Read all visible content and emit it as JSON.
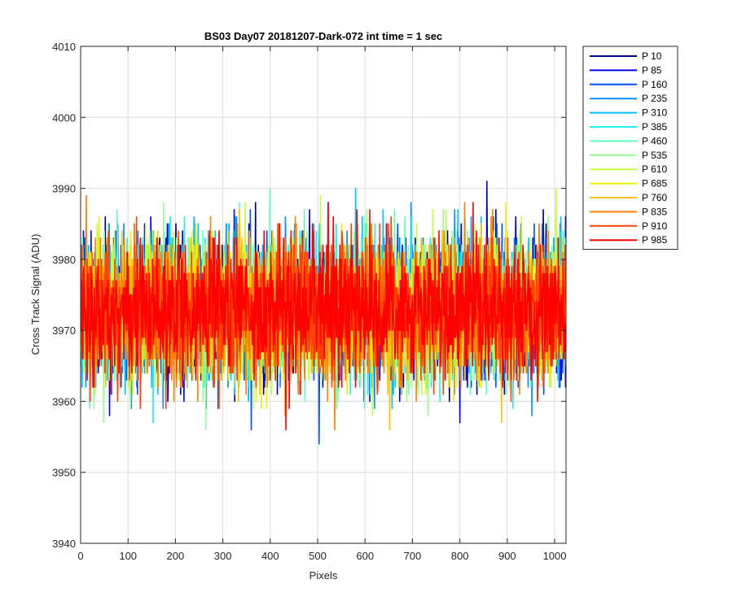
{
  "chart_data": {
    "type": "line",
    "title": "BS03 Day07 20181207-Dark-072 int time = 1 sec",
    "xlabel": "Pixels",
    "ylabel": "Cross Track Signal (ADU)",
    "xlim": [
      0,
      1024
    ],
    "ylim": [
      3940,
      4010
    ],
    "xticks": [
      "0",
      "100",
      "200",
      "300",
      "400",
      "500",
      "600",
      "700",
      "800",
      "900",
      "1000"
    ],
    "yticks": [
      "3940",
      "3950",
      "3960",
      "3970",
      "3980",
      "3990",
      "4000",
      "4010"
    ],
    "grid": true,
    "legend_placement": "outside-top-right",
    "series": [
      {
        "name": "P 10",
        "color": "#00008F",
        "mean": 3973,
        "spread": 6.5
      },
      {
        "name": "P 85",
        "color": "#0000EF",
        "mean": 3973,
        "spread": 6.5
      },
      {
        "name": "P 160",
        "color": "#0050FF",
        "mean": 3973,
        "spread": 6.5
      },
      {
        "name": "P 235",
        "color": "#0090FF",
        "mean": 3973,
        "spread": 6.5
      },
      {
        "name": "P 310",
        "color": "#00C0FF",
        "mean": 3973,
        "spread": 6.5
      },
      {
        "name": "P 385",
        "color": "#20EFEF",
        "mean": 3973,
        "spread": 6.5
      },
      {
        "name": "P 460",
        "color": "#60FFC0",
        "mean": 3973,
        "spread": 6.5
      },
      {
        "name": "P 535",
        "color": "#90FF90",
        "mean": 3973,
        "spread": 6.5
      },
      {
        "name": "P 610",
        "color": "#C0FF40",
        "mean": 3973,
        "spread": 6.5
      },
      {
        "name": "P 685",
        "color": "#F0F000",
        "mean": 3973,
        "spread": 6.5
      },
      {
        "name": "P 760",
        "color": "#FFC000",
        "mean": 3973,
        "spread": 6.5
      },
      {
        "name": "P 835",
        "color": "#FF8000",
        "mean": 3973,
        "spread": 6.5
      },
      {
        "name": "P 910",
        "color": "#FF4000",
        "mean": 3973,
        "spread": 6.5
      },
      {
        "name": "P 985",
        "color": "#FF0000",
        "mean": 3973,
        "spread": 6.5
      }
    ]
  }
}
